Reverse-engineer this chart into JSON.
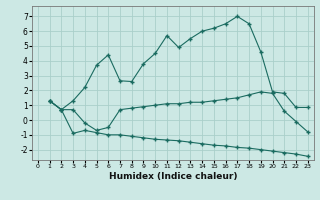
{
  "xlabel": "Humidex (Indice chaleur)",
  "background_color": "#cce8e4",
  "grid_color": "#aacfca",
  "line_color": "#1a6b60",
  "xlim": [
    -0.5,
    23.5
  ],
  "ylim": [
    -2.7,
    7.7
  ],
  "yticks": [
    -2,
    -1,
    0,
    1,
    2,
    3,
    4,
    5,
    6,
    7
  ],
  "xticks": [
    0,
    1,
    2,
    3,
    4,
    5,
    6,
    7,
    8,
    9,
    10,
    11,
    12,
    13,
    14,
    15,
    16,
    17,
    18,
    19,
    20,
    21,
    22,
    23
  ],
  "series1_x": [
    1,
    2,
    3,
    4,
    5,
    6,
    7,
    8,
    9,
    10,
    11,
    12,
    13,
    14,
    15,
    16,
    17,
    18,
    19,
    20,
    21,
    22,
    23
  ],
  "series1_y": [
    1.3,
    0.7,
    0.7,
    -0.2,
    -0.7,
    -0.5,
    0.7,
    0.8,
    0.9,
    1.0,
    1.1,
    1.1,
    1.2,
    1.2,
    1.3,
    1.4,
    1.5,
    1.7,
    1.9,
    1.8,
    0.6,
    -0.1,
    -0.8
  ],
  "series2_x": [
    1,
    2,
    3,
    4,
    5,
    6,
    7,
    8,
    9,
    10,
    11,
    12,
    13,
    14,
    15,
    16,
    17,
    18,
    19,
    20,
    21,
    22,
    23
  ],
  "series2_y": [
    1.3,
    0.7,
    1.3,
    2.2,
    3.7,
    4.4,
    2.65,
    2.6,
    3.8,
    4.5,
    5.7,
    4.9,
    5.5,
    6.0,
    6.2,
    6.5,
    7.0,
    6.5,
    4.6,
    1.9,
    1.8,
    0.85,
    0.85
  ],
  "series3_x": [
    1,
    2,
    3,
    4,
    5,
    6,
    7,
    8,
    9,
    10,
    11,
    12,
    13,
    14,
    15,
    16,
    17,
    18,
    19,
    20,
    21,
    22,
    23
  ],
  "series3_y": [
    1.3,
    0.7,
    -0.9,
    -0.7,
    -0.85,
    -1.0,
    -1.0,
    -1.1,
    -1.2,
    -1.3,
    -1.35,
    -1.4,
    -1.5,
    -1.6,
    -1.7,
    -1.75,
    -1.85,
    -1.9,
    -2.0,
    -2.1,
    -2.2,
    -2.3,
    -2.45
  ]
}
